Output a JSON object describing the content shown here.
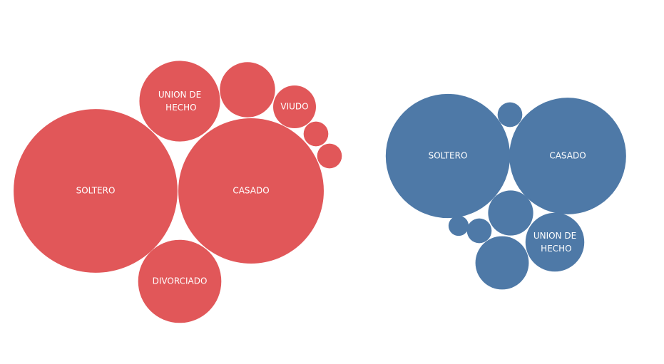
{
  "chart_data": [
    {
      "type": "bubble",
      "color": "#e15759",
      "categories": [
        "SOLTERO",
        "CASADO",
        "UNION DE HECHO",
        "DIVORCIADO",
        null,
        "VIUDO",
        null,
        null
      ],
      "values": [
        132,
        104,
        32,
        34,
        15,
        9,
        3,
        3
      ]
    },
    {
      "type": "bubble",
      "color": "#4e79a7",
      "categories": [
        "SOLTERO",
        "CASADO",
        null,
        null,
        "UNION DE HECHO",
        null,
        null,
        null
      ],
      "values": [
        76,
        67,
        3,
        10,
        17,
        14,
        3,
        2
      ]
    }
  ]
}
